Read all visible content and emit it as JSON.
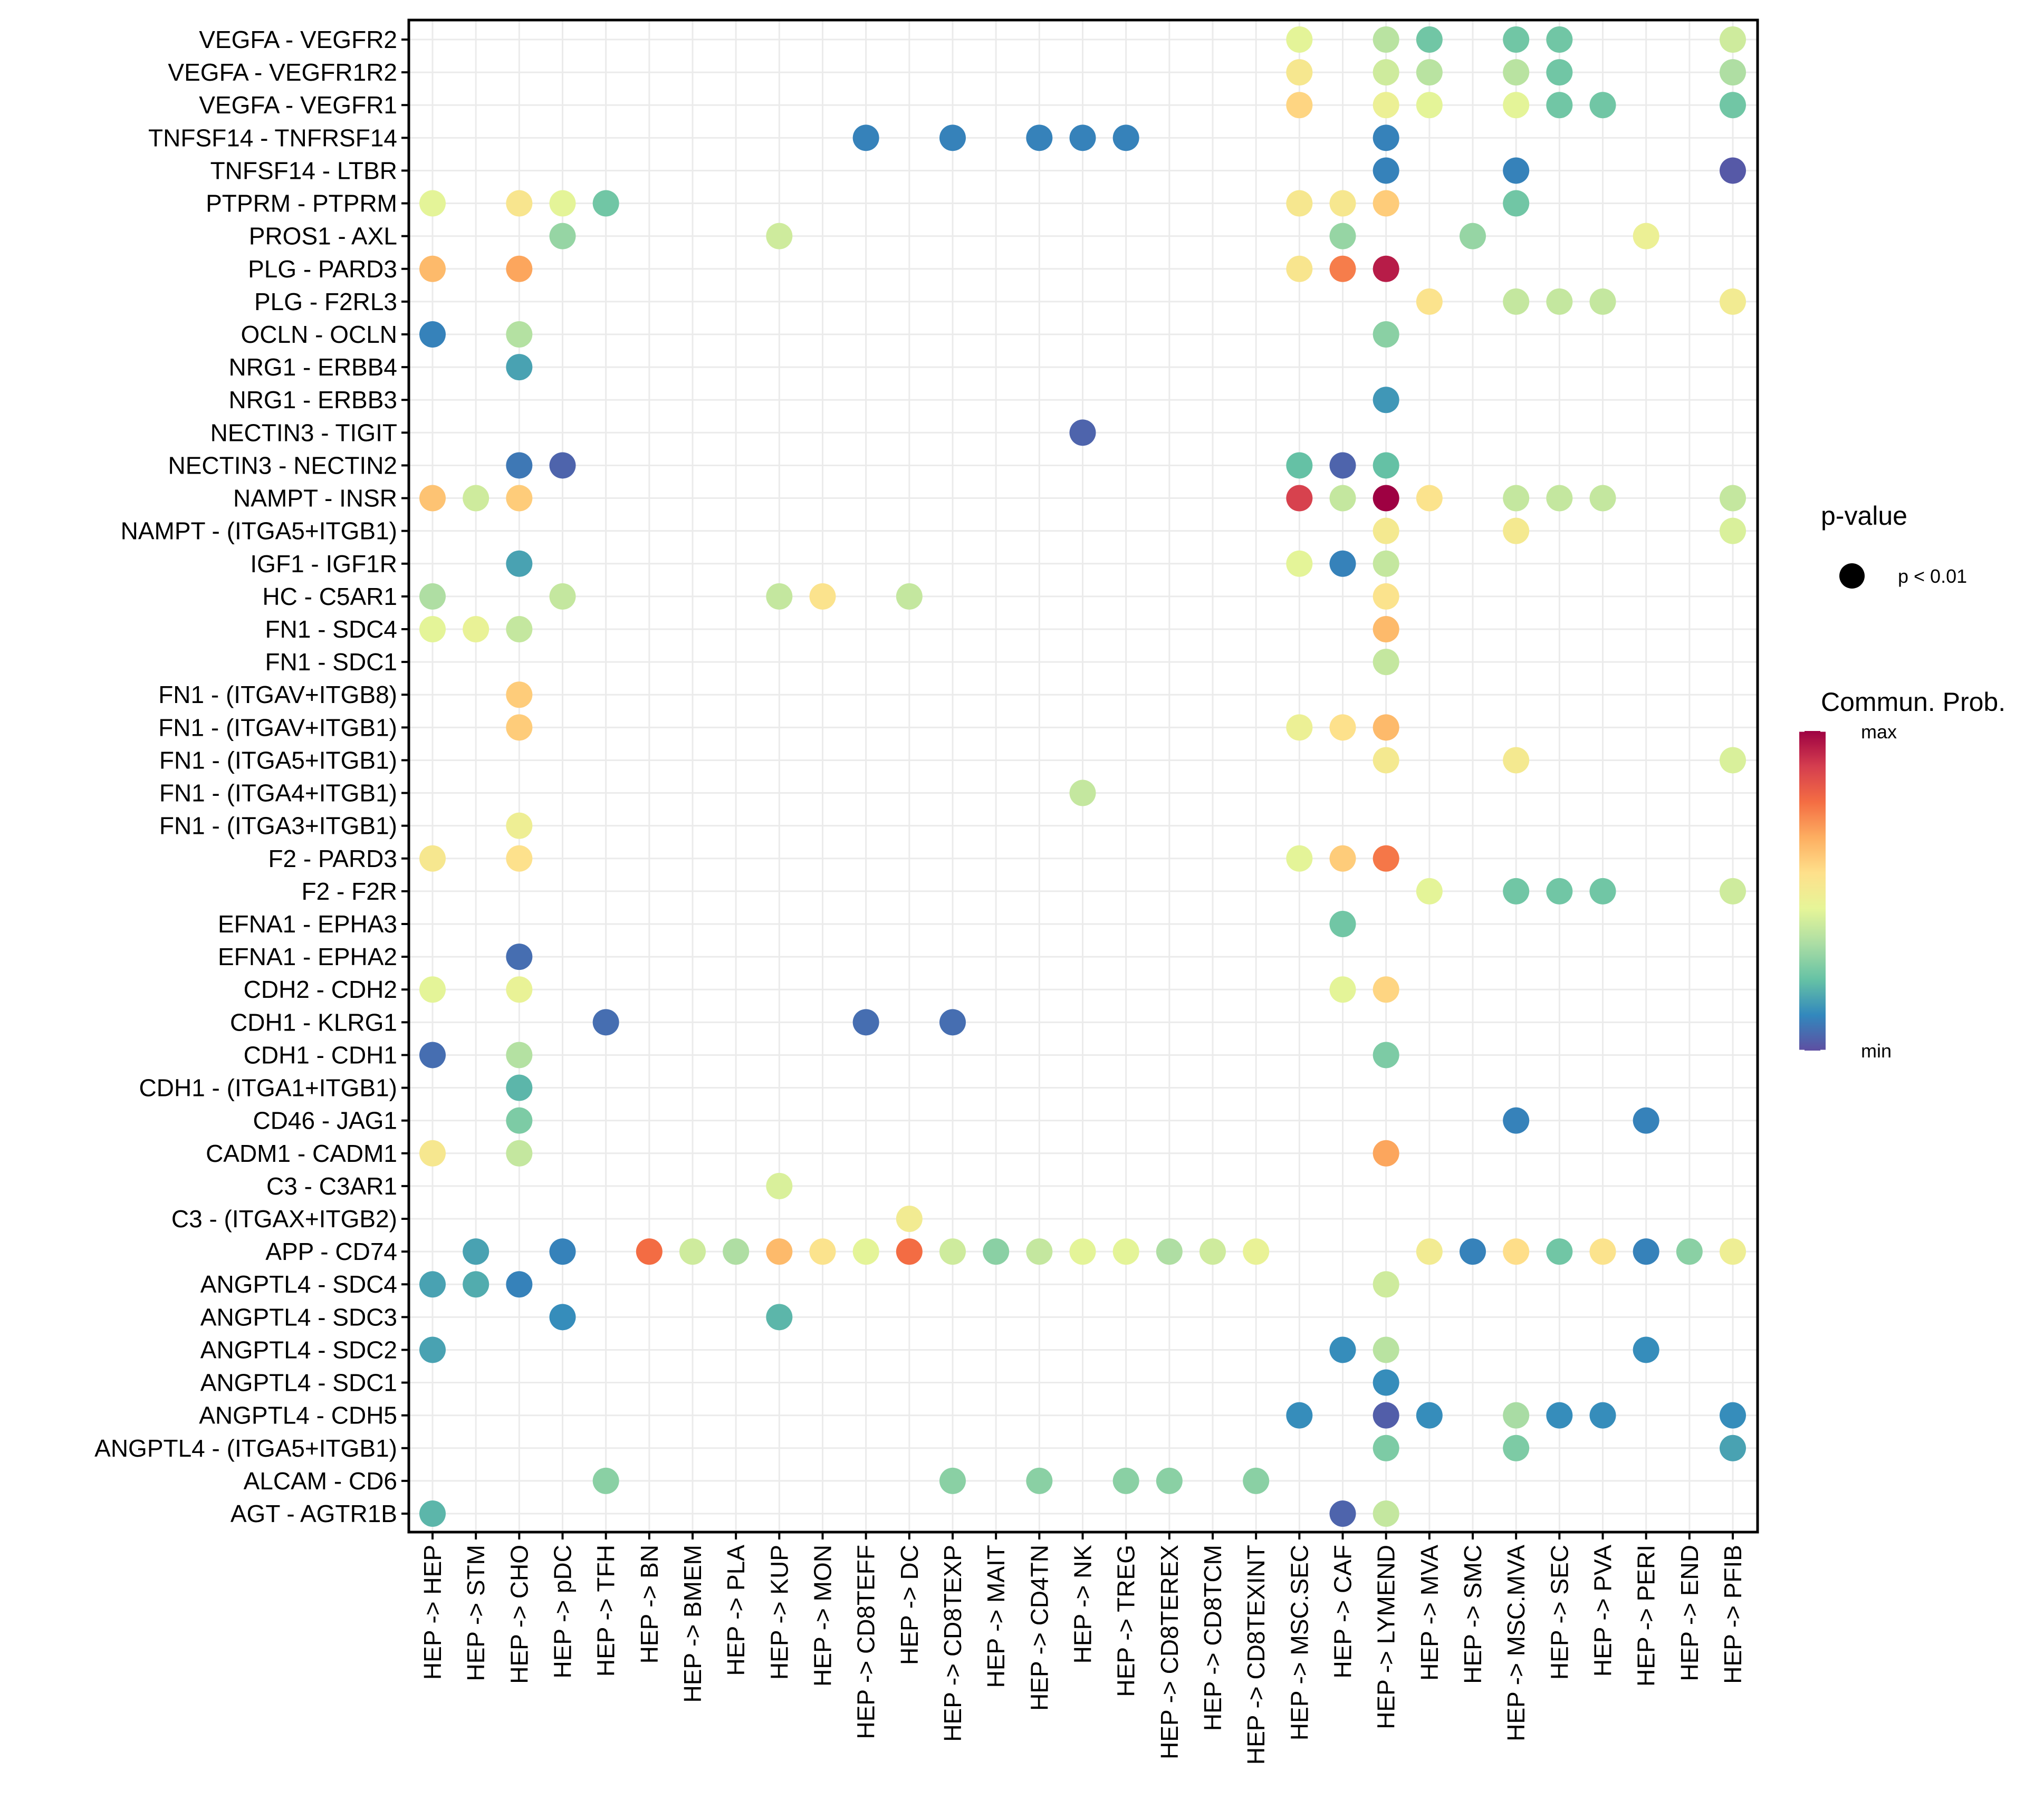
{
  "chart_data": {
    "type": "scatter",
    "subtype": "dot-plot",
    "title": "",
    "xlabel": "",
    "ylabel": "",
    "grid": true,
    "x_categories": [
      "HEP -> HEP",
      "HEP -> STM",
      "HEP -> CHO",
      "HEP -> pDC",
      "HEP -> TFH",
      "HEP -> BN",
      "HEP -> BMEM",
      "HEP -> PLA",
      "HEP -> KUP",
      "HEP -> MON",
      "HEP -> CD8TEFF",
      "HEP -> DC",
      "HEP -> CD8TEXP",
      "HEP -> MAIT",
      "HEP -> CD4TN",
      "HEP -> NK",
      "HEP -> TREG",
      "HEP -> CD8TEREX",
      "HEP -> CD8TCM",
      "HEP -> CD8TEXINT",
      "HEP -> MSC.SEC",
      "HEP -> CAF",
      "HEP -> LYMEND",
      "HEP -> MVA",
      "HEP -> SMC",
      "HEP -> MSC.MVA",
      "HEP -> SEC",
      "HEP -> PVA",
      "HEP -> PERI",
      "HEP -> END",
      "HEP -> PFIB"
    ],
    "y_categories": [
      "VEGFA - VEGFR2",
      "VEGFA - VEGFR1R2",
      "VEGFA - VEGFR1",
      "TNFSF14 - TNFRSF14",
      "TNFSF14 - LTBR",
      "PTPRM - PTPRM",
      "PROS1 - AXL",
      "PLG - PARD3",
      "PLG - F2RL3",
      "OCLN - OCLN",
      "NRG1 - ERBB4",
      "NRG1 - ERBB3",
      "NECTIN3 - TIGIT",
      "NECTIN3 - NECTIN2",
      "NAMPT - INSR",
      "NAMPT - (ITGA5+ITGB1)",
      "IGF1 - IGF1R",
      "HC - C5AR1",
      "FN1 - SDC4",
      "FN1 - SDC1",
      "FN1 - (ITGAV+ITGB8)",
      "FN1 - (ITGAV+ITGB1)",
      "FN1 - (ITGA5+ITGB1)",
      "FN1 - (ITGA4+ITGB1)",
      "FN1 - (ITGA3+ITGB1)",
      "F2 - PARD3",
      "F2 - F2R",
      "EFNA1 - EPHA3",
      "EFNA1 - EPHA2",
      "CDH2 - CDH2",
      "CDH1 - KLRG1",
      "CDH1 - CDH1",
      "CDH1 - (ITGA1+ITGB1)",
      "CD46 - JAG1",
      "CADM1 - CADM1",
      "C3 - C3AR1",
      "C3 - (ITGAX+ITGB2)",
      "APP - CD74",
      "ANGPTL4 - SDC4",
      "ANGPTL4 - SDC3",
      "ANGPTL4 - SDC2",
      "ANGPTL4 - SDC1",
      "ANGPTL4 - CDH5",
      "ANGPTL4 - (ITGA5+ITGB1)",
      "ALCAM - CD6",
      "AGT - AGTR1B"
    ],
    "value_scale": "Commun. Prob. normalized 0 (min) to 1 (max)",
    "points_format": [
      "row_index",
      "col_index",
      "commun_prob_norm"
    ],
    "points": [
      [
        0,
        20,
        0.44
      ],
      [
        0,
        22,
        0.36
      ],
      [
        0,
        23,
        0.24
      ],
      [
        0,
        25,
        0.24
      ],
      [
        0,
        26,
        0.24
      ],
      [
        0,
        30,
        0.4
      ],
      [
        1,
        20,
        0.52
      ],
      [
        1,
        22,
        0.4
      ],
      [
        1,
        23,
        0.36
      ],
      [
        1,
        25,
        0.36
      ],
      [
        1,
        26,
        0.24
      ],
      [
        1,
        30,
        0.34
      ],
      [
        2,
        20,
        0.58
      ],
      [
        2,
        22,
        0.47
      ],
      [
        2,
        23,
        0.44
      ],
      [
        2,
        25,
        0.44
      ],
      [
        2,
        26,
        0.24
      ],
      [
        2,
        27,
        0.24
      ],
      [
        2,
        30,
        0.24
      ],
      [
        3,
        10,
        0.1
      ],
      [
        3,
        12,
        0.1
      ],
      [
        3,
        14,
        0.1
      ],
      [
        3,
        15,
        0.1
      ],
      [
        3,
        16,
        0.1
      ],
      [
        3,
        22,
        0.1
      ],
      [
        4,
        22,
        0.1
      ],
      [
        4,
        25,
        0.1
      ],
      [
        4,
        30,
        0.02
      ],
      [
        5,
        0,
        0.44
      ],
      [
        5,
        2,
        0.53
      ],
      [
        5,
        3,
        0.44
      ],
      [
        5,
        4,
        0.24
      ],
      [
        5,
        20,
        0.52
      ],
      [
        5,
        21,
        0.52
      ],
      [
        5,
        22,
        0.6
      ],
      [
        5,
        25,
        0.24
      ],
      [
        6,
        3,
        0.3
      ],
      [
        6,
        8,
        0.4
      ],
      [
        6,
        21,
        0.3
      ],
      [
        6,
        24,
        0.3
      ],
      [
        6,
        28,
        0.47
      ],
      [
        7,
        0,
        0.64
      ],
      [
        7,
        2,
        0.68
      ],
      [
        7,
        20,
        0.53
      ],
      [
        7,
        21,
        0.75
      ],
      [
        7,
        22,
        0.95
      ],
      [
        8,
        23,
        0.54
      ],
      [
        8,
        25,
        0.38
      ],
      [
        8,
        26,
        0.38
      ],
      [
        8,
        27,
        0.38
      ],
      [
        8,
        30,
        0.5
      ],
      [
        9,
        0,
        0.1
      ],
      [
        9,
        2,
        0.35
      ],
      [
        9,
        22,
        0.28
      ],
      [
        10,
        2,
        0.16
      ],
      [
        11,
        22,
        0.14
      ],
      [
        12,
        15,
        0.04
      ],
      [
        13,
        2,
        0.08
      ],
      [
        13,
        3,
        0.04
      ],
      [
        13,
        20,
        0.22
      ],
      [
        13,
        21,
        0.04
      ],
      [
        13,
        22,
        0.22
      ],
      [
        14,
        0,
        0.62
      ],
      [
        14,
        1,
        0.4
      ],
      [
        14,
        2,
        0.6
      ],
      [
        14,
        20,
        0.88
      ],
      [
        14,
        21,
        0.38
      ],
      [
        14,
        22,
        1.0
      ],
      [
        14,
        23,
        0.54
      ],
      [
        14,
        25,
        0.38
      ],
      [
        14,
        26,
        0.38
      ],
      [
        14,
        27,
        0.38
      ],
      [
        14,
        30,
        0.38
      ],
      [
        15,
        22,
        0.51
      ],
      [
        15,
        25,
        0.51
      ],
      [
        15,
        30,
        0.42
      ],
      [
        16,
        2,
        0.16
      ],
      [
        16,
        20,
        0.44
      ],
      [
        16,
        21,
        0.1
      ],
      [
        16,
        22,
        0.38
      ],
      [
        17,
        0,
        0.34
      ],
      [
        17,
        3,
        0.38
      ],
      [
        17,
        8,
        0.38
      ],
      [
        17,
        9,
        0.54
      ],
      [
        17,
        11,
        0.38
      ],
      [
        17,
        22,
        0.54
      ],
      [
        18,
        0,
        0.44
      ],
      [
        18,
        1,
        0.46
      ],
      [
        18,
        2,
        0.38
      ],
      [
        18,
        22,
        0.64
      ],
      [
        19,
        22,
        0.38
      ],
      [
        20,
        2,
        0.6
      ],
      [
        21,
        2,
        0.6
      ],
      [
        21,
        20,
        0.47
      ],
      [
        21,
        21,
        0.55
      ],
      [
        21,
        22,
        0.64
      ],
      [
        22,
        22,
        0.51
      ],
      [
        22,
        25,
        0.51
      ],
      [
        22,
        30,
        0.42
      ],
      [
        23,
        15,
        0.38
      ],
      [
        24,
        2,
        0.48
      ],
      [
        25,
        0,
        0.52
      ],
      [
        25,
        2,
        0.55
      ],
      [
        25,
        20,
        0.44
      ],
      [
        25,
        21,
        0.6
      ],
      [
        25,
        22,
        0.76
      ],
      [
        26,
        23,
        0.44
      ],
      [
        26,
        25,
        0.24
      ],
      [
        26,
        26,
        0.24
      ],
      [
        26,
        27,
        0.24
      ],
      [
        26,
        30,
        0.4
      ],
      [
        27,
        21,
        0.24
      ],
      [
        28,
        2,
        0.06
      ],
      [
        29,
        0,
        0.44
      ],
      [
        29,
        2,
        0.46
      ],
      [
        29,
        21,
        0.44
      ],
      [
        29,
        22,
        0.58
      ],
      [
        30,
        4,
        0.06
      ],
      [
        30,
        10,
        0.06
      ],
      [
        30,
        12,
        0.06
      ],
      [
        31,
        0,
        0.06
      ],
      [
        31,
        2,
        0.35
      ],
      [
        31,
        22,
        0.26
      ],
      [
        32,
        2,
        0.2
      ],
      [
        33,
        2,
        0.26
      ],
      [
        33,
        25,
        0.1
      ],
      [
        33,
        28,
        0.1
      ],
      [
        34,
        0,
        0.52
      ],
      [
        34,
        2,
        0.38
      ],
      [
        34,
        22,
        0.68
      ],
      [
        35,
        8,
        0.42
      ],
      [
        36,
        11,
        0.5
      ],
      [
        37,
        1,
        0.16
      ],
      [
        37,
        3,
        0.1
      ],
      [
        37,
        5,
        0.78
      ],
      [
        37,
        6,
        0.4
      ],
      [
        37,
        7,
        0.34
      ],
      [
        37,
        8,
        0.64
      ],
      [
        37,
        9,
        0.54
      ],
      [
        37,
        10,
        0.44
      ],
      [
        37,
        11,
        0.78
      ],
      [
        37,
        12,
        0.4
      ],
      [
        37,
        13,
        0.28
      ],
      [
        37,
        14,
        0.38
      ],
      [
        37,
        15,
        0.44
      ],
      [
        37,
        16,
        0.44
      ],
      [
        37,
        17,
        0.34
      ],
      [
        37,
        18,
        0.4
      ],
      [
        37,
        19,
        0.46
      ],
      [
        37,
        23,
        0.5
      ],
      [
        37,
        24,
        0.1
      ],
      [
        37,
        25,
        0.56
      ],
      [
        37,
        26,
        0.24
      ],
      [
        37,
        27,
        0.54
      ],
      [
        37,
        28,
        0.1
      ],
      [
        37,
        29,
        0.28
      ],
      [
        37,
        30,
        0.48
      ],
      [
        38,
        0,
        0.16
      ],
      [
        38,
        1,
        0.18
      ],
      [
        38,
        2,
        0.1
      ],
      [
        38,
        22,
        0.4
      ],
      [
        39,
        3,
        0.12
      ],
      [
        39,
        8,
        0.2
      ],
      [
        40,
        0,
        0.16
      ],
      [
        40,
        21,
        0.12
      ],
      [
        40,
        22,
        0.36
      ],
      [
        40,
        28,
        0.12
      ],
      [
        41,
        22,
        0.12
      ],
      [
        42,
        20,
        0.12
      ],
      [
        42,
        22,
        0.03
      ],
      [
        42,
        23,
        0.12
      ],
      [
        42,
        25,
        0.33
      ],
      [
        42,
        26,
        0.12
      ],
      [
        42,
        27,
        0.12
      ],
      [
        42,
        30,
        0.12
      ],
      [
        43,
        22,
        0.26
      ],
      [
        43,
        25,
        0.26
      ],
      [
        43,
        30,
        0.16
      ],
      [
        44,
        4,
        0.28
      ],
      [
        44,
        12,
        0.28
      ],
      [
        44,
        14,
        0.28
      ],
      [
        44,
        16,
        0.28
      ],
      [
        44,
        17,
        0.28
      ],
      [
        44,
        19,
        0.28
      ],
      [
        45,
        0,
        0.2
      ],
      [
        45,
        21,
        0.04
      ],
      [
        45,
        22,
        0.38
      ]
    ],
    "legend": {
      "size": {
        "title": "p-value",
        "entries": [
          "p < 0.01"
        ]
      },
      "color": {
        "title": "Commun. Prob.",
        "max_label": "max",
        "min_label": "min",
        "palette": [
          "#5E4FA2",
          "#3288BD",
          "#66C2A5",
          "#ABDDA4",
          "#E6F598",
          "#FEE08B",
          "#FDAE61",
          "#F46D43",
          "#D53E4F",
          "#9E0142"
        ]
      },
      "placement": "right"
    }
  }
}
